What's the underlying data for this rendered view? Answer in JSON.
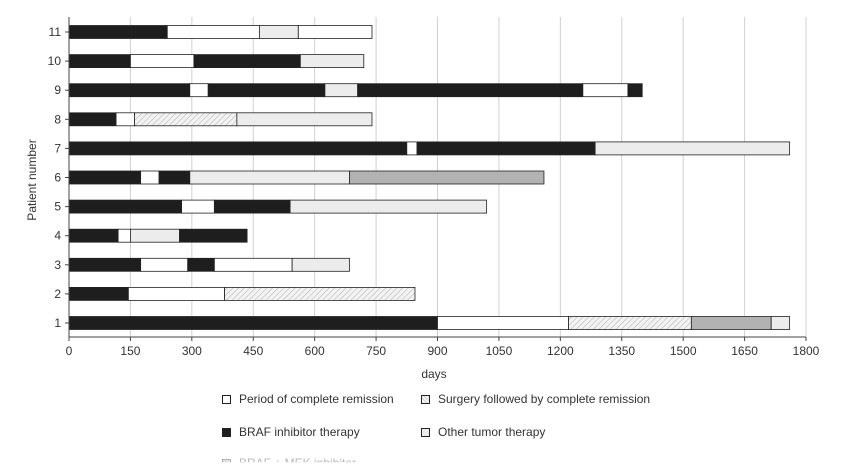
{
  "chart_data": {
    "type": "bar",
    "orientation": "horizontal-stacked",
    "title": "",
    "xlabel": "days",
    "ylabel": "Patient number",
    "xlim": [
      0,
      1800
    ],
    "xticks": [
      0,
      150,
      300,
      450,
      600,
      750,
      900,
      1050,
      1200,
      1350,
      1500,
      1650,
      1800
    ],
    "xtick_labels": [
      "0",
      "150",
      "300",
      "450",
      "600",
      "750",
      "900",
      "1050",
      "1200",
      "1350",
      "1500",
      "1650",
      "1800"
    ],
    "grid": "vertical",
    "colors": {
      "braf": "#1e1e1e",
      "remission": "#ffffff",
      "other": "#ececec",
      "mek": "#b2b2b2",
      "surgery": "#f3f3f3",
      "outline": "#222222",
      "grid": "#d0d0d0"
    },
    "patients": [
      {
        "label": "11",
        "segments": [
          {
            "type": "braf",
            "start": 0,
            "end": 240
          },
          {
            "type": "remission",
            "start": 240,
            "end": 465
          },
          {
            "type": "other",
            "start": 465,
            "end": 560
          },
          {
            "type": "remission",
            "start": 560,
            "end": 740
          }
        ]
      },
      {
        "label": "10",
        "segments": [
          {
            "type": "braf",
            "start": 0,
            "end": 150
          },
          {
            "type": "remission",
            "start": 150,
            "end": 305
          },
          {
            "type": "braf",
            "start": 305,
            "end": 565
          },
          {
            "type": "other",
            "start": 565,
            "end": 720
          }
        ]
      },
      {
        "label": "9",
        "segments": [
          {
            "type": "braf",
            "start": 0,
            "end": 295
          },
          {
            "type": "remission",
            "start": 295,
            "end": 340
          },
          {
            "type": "braf",
            "start": 340,
            "end": 625
          },
          {
            "type": "other",
            "start": 625,
            "end": 705
          },
          {
            "type": "braf",
            "start": 705,
            "end": 1255
          },
          {
            "type": "remission",
            "start": 1255,
            "end": 1365
          },
          {
            "type": "braf",
            "start": 1365,
            "end": 1400
          }
        ]
      },
      {
        "label": "8",
        "segments": [
          {
            "type": "braf",
            "start": 0,
            "end": 115
          },
          {
            "type": "remission",
            "start": 115,
            "end": 160
          },
          {
            "type": "surgery",
            "start": 160,
            "end": 410
          },
          {
            "type": "other",
            "start": 410,
            "end": 740
          }
        ]
      },
      {
        "label": "7",
        "segments": [
          {
            "type": "braf",
            "start": 0,
            "end": 825
          },
          {
            "type": "remission",
            "start": 825,
            "end": 850
          },
          {
            "type": "braf",
            "start": 850,
            "end": 1285
          },
          {
            "type": "other",
            "start": 1285,
            "end": 1760
          }
        ]
      },
      {
        "label": "6",
        "segments": [
          {
            "type": "braf",
            "start": 0,
            "end": 175
          },
          {
            "type": "remission",
            "start": 175,
            "end": 220
          },
          {
            "type": "braf",
            "start": 220,
            "end": 295
          },
          {
            "type": "other",
            "start": 295,
            "end": 685
          },
          {
            "type": "mek",
            "start": 685,
            "end": 1160
          }
        ]
      },
      {
        "label": "5",
        "segments": [
          {
            "type": "braf",
            "start": 0,
            "end": 275
          },
          {
            "type": "remission",
            "start": 275,
            "end": 355
          },
          {
            "type": "braf",
            "start": 355,
            "end": 540
          },
          {
            "type": "other",
            "start": 540,
            "end": 1020
          }
        ]
      },
      {
        "label": "4",
        "segments": [
          {
            "type": "braf",
            "start": 0,
            "end": 120
          },
          {
            "type": "remission",
            "start": 120,
            "end": 150
          },
          {
            "type": "other",
            "start": 150,
            "end": 270
          },
          {
            "type": "braf",
            "start": 270,
            "end": 435
          }
        ]
      },
      {
        "label": "3",
        "segments": [
          {
            "type": "braf",
            "start": 0,
            "end": 175
          },
          {
            "type": "remission",
            "start": 175,
            "end": 290
          },
          {
            "type": "braf",
            "start": 290,
            "end": 355
          },
          {
            "type": "remission",
            "start": 355,
            "end": 545
          },
          {
            "type": "other",
            "start": 545,
            "end": 685
          }
        ]
      },
      {
        "label": "2",
        "segments": [
          {
            "type": "braf",
            "start": 0,
            "end": 145
          },
          {
            "type": "remission",
            "start": 145,
            "end": 380
          },
          {
            "type": "surgery",
            "start": 380,
            "end": 845
          }
        ]
      },
      {
        "label": "1",
        "segments": [
          {
            "type": "braf",
            "start": 0,
            "end": 900
          },
          {
            "type": "remission",
            "start": 900,
            "end": 1220
          },
          {
            "type": "surgery",
            "start": 1220,
            "end": 1520
          },
          {
            "type": "mek",
            "start": 1520,
            "end": 1715
          },
          {
            "type": "other",
            "start": 1715,
            "end": 1760
          }
        ]
      }
    ],
    "legend": [
      {
        "key": "remission",
        "label": "Period of complete remission"
      },
      {
        "key": "surgery",
        "label": "Surgery followed by complete remission"
      },
      {
        "key": "braf",
        "label": "BRAF inhibitor therapy"
      },
      {
        "key": "other",
        "label": "Other tumor therapy"
      },
      {
        "key": "mek",
        "label": "BRAF + MEK inhibitor"
      }
    ]
  }
}
